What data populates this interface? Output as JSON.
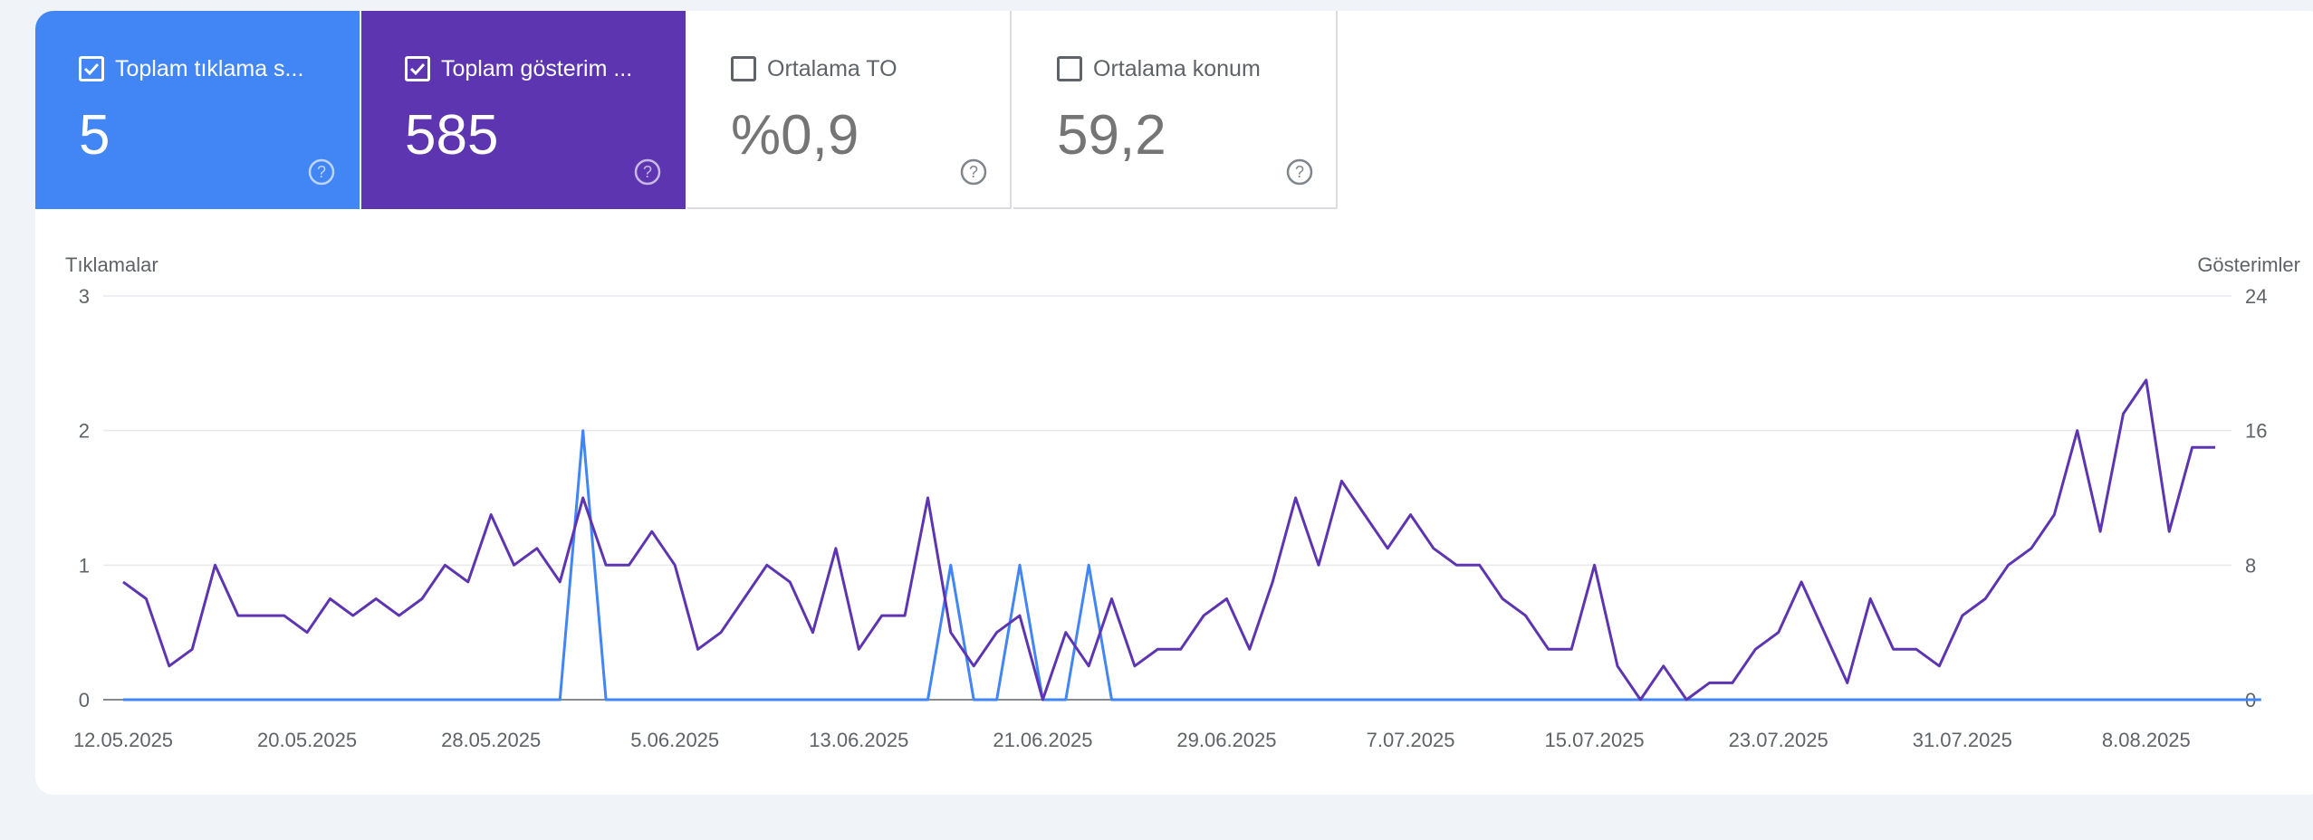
{
  "metrics": [
    {
      "label": "Toplam tıklama s...",
      "value": "5",
      "checked": true,
      "color": "#4285f4"
    },
    {
      "label": "Toplam gösterim ...",
      "value": "585",
      "checked": true,
      "color": "#5e35b1"
    },
    {
      "label": "Ortalama TO",
      "value": "%0,9",
      "checked": false
    },
    {
      "label": "Ortalama konum",
      "value": "59,2",
      "checked": false
    }
  ],
  "chart_data": {
    "type": "line",
    "ylabel_left": "Tıklamalar",
    "ylabel_right": "Gösterimler",
    "ylim_left": [
      0,
      3
    ],
    "ylim_right": [
      0,
      24
    ],
    "yticks_left": [
      "0",
      "1",
      "2",
      "3"
    ],
    "yticks_right": [
      "0",
      "8",
      "16",
      "24"
    ],
    "xtick_labels": [
      "12.05.2025",
      "20.05.2025",
      "28.05.2025",
      "5.06.2025",
      "13.06.2025",
      "21.06.2025",
      "29.06.2025",
      "7.07.2025",
      "15.07.2025",
      "23.07.2025",
      "31.07.2025",
      "8.08.2025"
    ],
    "grid": true,
    "series": [
      {
        "axis": "left",
        "color": "#4285f4",
        "values": [
          0,
          0,
          0,
          0,
          0,
          0,
          0,
          0,
          0,
          0,
          0,
          0,
          0,
          0,
          0,
          0,
          0,
          0,
          0,
          0,
          2,
          0,
          0,
          0,
          0,
          0,
          0,
          0,
          0,
          0,
          0,
          0,
          0,
          0,
          0,
          0,
          1,
          0,
          0,
          1,
          0,
          0,
          1,
          0,
          0,
          0,
          0,
          0,
          0,
          0,
          0,
          0,
          0,
          0,
          0,
          0,
          0,
          0,
          0,
          0,
          0,
          0,
          0,
          0,
          0,
          0,
          0,
          0,
          0,
          0,
          0,
          0,
          0,
          0,
          0,
          0,
          0,
          0,
          0,
          0,
          0,
          0,
          0,
          0,
          0,
          0,
          0,
          0,
          0,
          0,
          0,
          0,
          0,
          0
        ]
      },
      {
        "axis": "right",
        "color": "#5e35b1",
        "values": [
          7,
          6,
          2,
          3,
          8,
          5,
          5,
          5,
          4,
          6,
          5,
          6,
          5,
          6,
          8,
          7,
          11,
          8,
          9,
          7,
          12,
          8,
          8,
          10,
          8,
          3,
          4,
          6,
          8,
          7,
          4,
          9,
          3,
          5,
          5,
          12,
          4,
          2,
          4,
          5,
          0,
          4,
          2,
          6,
          2,
          3,
          3,
          5,
          6,
          3,
          7,
          12,
          8,
          13,
          11,
          9,
          11,
          9,
          8,
          8,
          6,
          5,
          3,
          3,
          8,
          2,
          0,
          2,
          0,
          1,
          1,
          3,
          4,
          7,
          4,
          1,
          6,
          3,
          3,
          2,
          5,
          6,
          8,
          9,
          11,
          16,
          10,
          17,
          19,
          10,
          15,
          15
        ]
      }
    ]
  }
}
